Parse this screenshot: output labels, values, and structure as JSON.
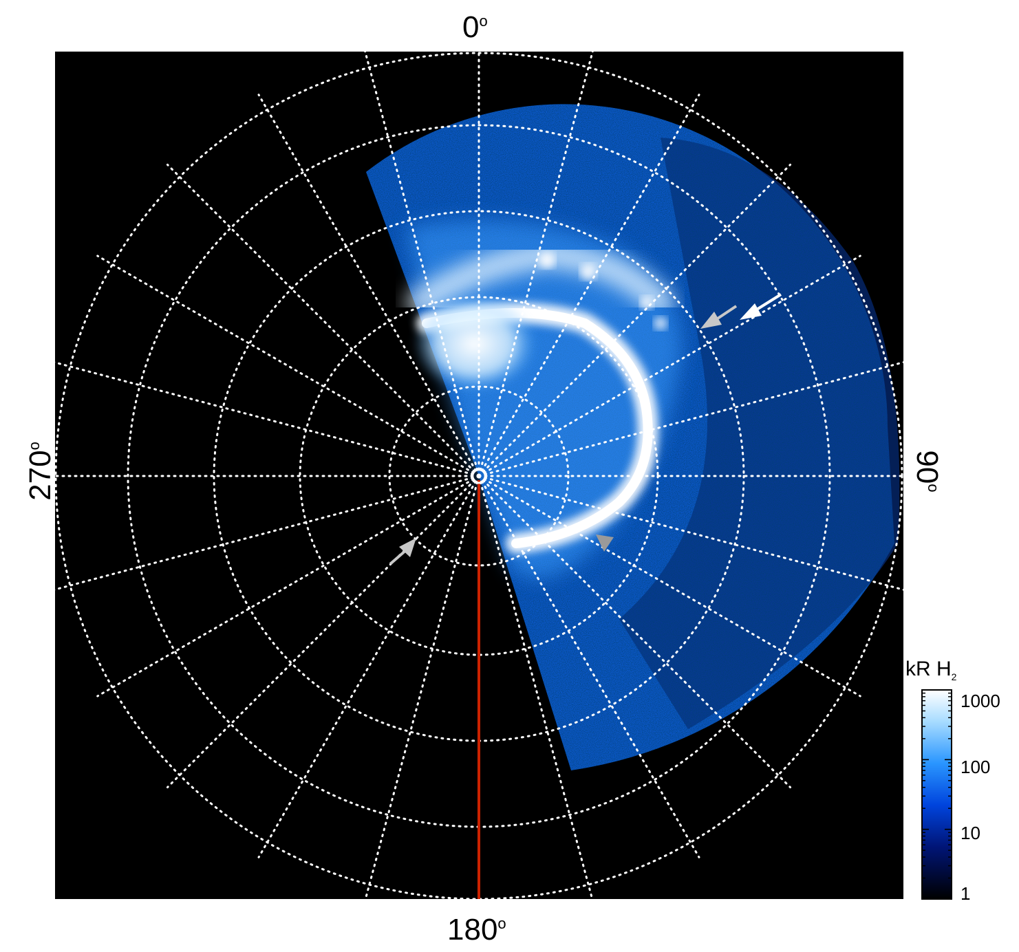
{
  "axis_labels": {
    "top": "0",
    "right": "90",
    "bottom": "180",
    "left": "270",
    "degree_symbol": "o"
  },
  "colorbar": {
    "title_main": "kR H",
    "title_sub": "2",
    "ticks": [
      "1000",
      "100",
      "10",
      "1"
    ],
    "colors": [
      "#ffffff",
      "#8fd0ff",
      "#1a8cff",
      "#0033cc",
      "#001266",
      "#000000"
    ]
  },
  "colors": {
    "background": "#000000",
    "grid": "#ffffff",
    "meridian_line": "#cc2200",
    "arrow_white": "#ffffff",
    "arrow_grey": "#c8c8c8"
  }
}
